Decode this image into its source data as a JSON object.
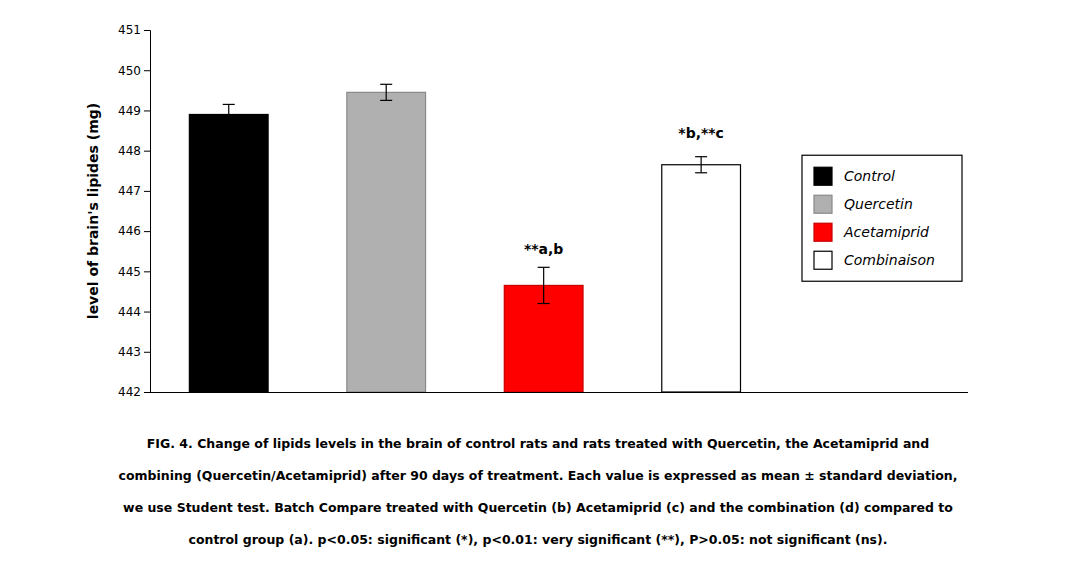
{
  "chart_data": {
    "type": "bar",
    "ylabel": "level of brain's lipides  (mg)",
    "categories": [
      "Control",
      "Quercetin",
      "Acetamiprid",
      "Combinaison"
    ],
    "values": [
      448.9,
      449.45,
      444.65,
      447.65
    ],
    "errors": [
      0.25,
      0.2,
      0.45,
      0.2
    ],
    "colors": [
      "#000000",
      "#b0b0b0",
      "#ff0000",
      "#ffffff"
    ],
    "ylim": [
      442,
      451
    ],
    "yticks": [
      442,
      443,
      444,
      445,
      446,
      447,
      448,
      449,
      450,
      451
    ],
    "grid": false,
    "legend": "right",
    "tick_labels": "y",
    "annotations": [
      {
        "text": "**a,b",
        "category": "Acetamiprid",
        "y": 445.35
      },
      {
        "text": "*b,**c",
        "category": "Combinaison",
        "y": 448.25
      }
    ],
    "caption": [
      "FIG. 4. Change of lipids levels in the brain of control rats and rats treated with Quercetin, the Acetamiprid and",
      "combining (Quercetin/Acetamiprid) after 90 days of treatment. Each value is expressed as mean ± standard deviation,",
      "we use Student test. Batch Compare treated with Quercetin (b) Acetamiprid (c) and the combination (d) compared to",
      "control group (a). p<0.05: significant (*), p<0.01: very significant (**), P>0.05: not significant (ns)."
    ]
  }
}
